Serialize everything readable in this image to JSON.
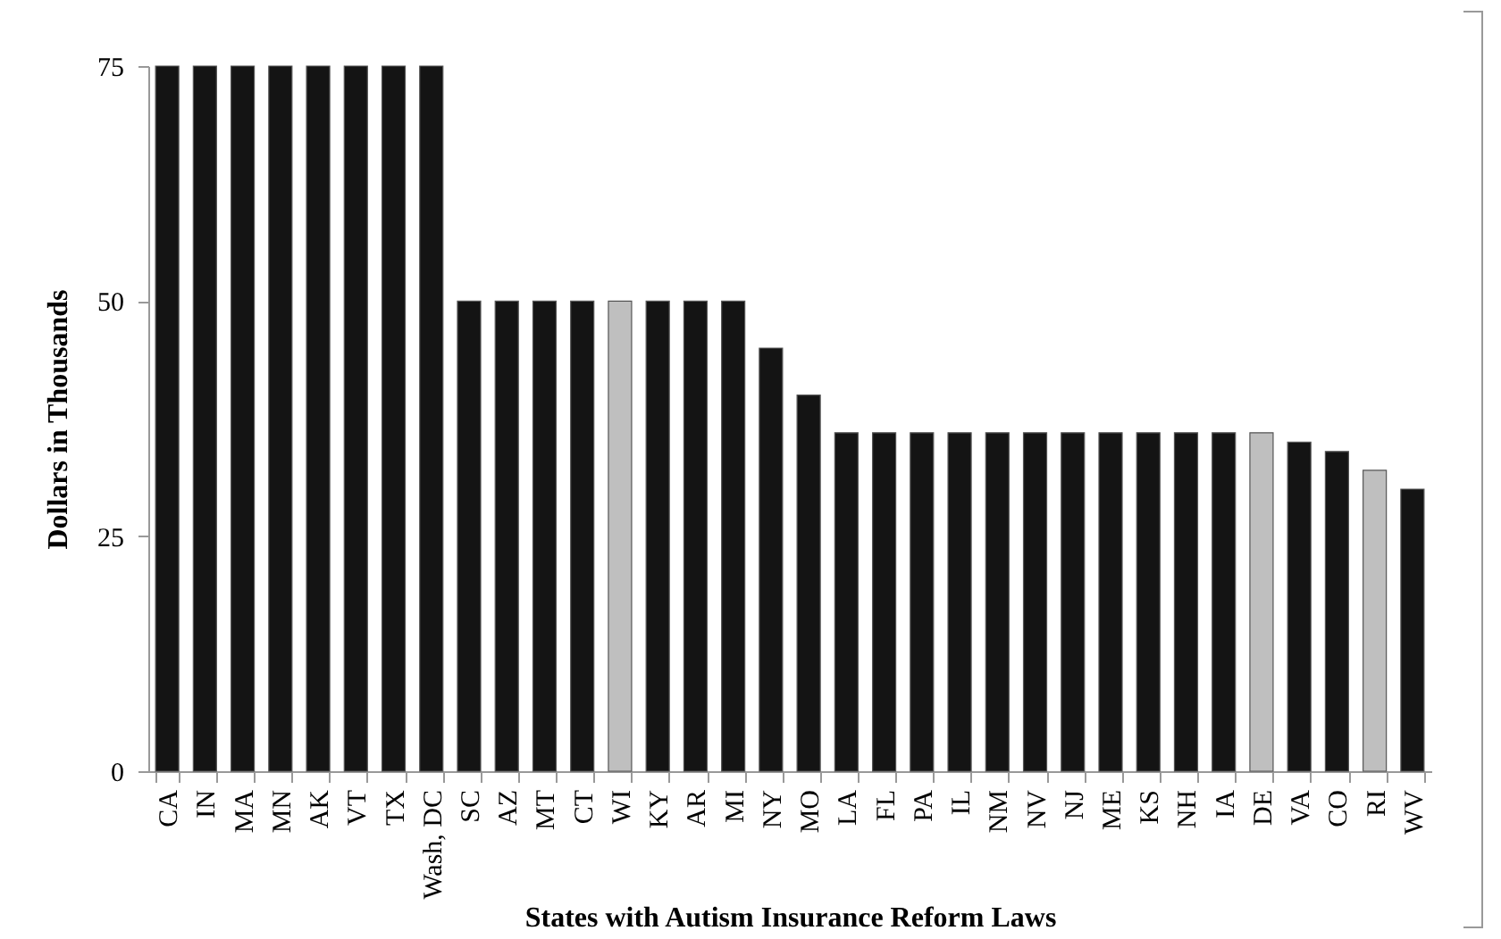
{
  "chart_data": {
    "type": "bar",
    "xlabel": "States with Autism Insurance Reform Laws",
    "ylabel": "Dollars in Thousands",
    "categories": [
      "CA",
      "IN",
      "MA",
      "MN",
      "AK",
      "VT",
      "TX",
      "Wash, DC",
      "SC",
      "AZ",
      "MT",
      "CT",
      "WI",
      "KY",
      "AR",
      "MI",
      "NY",
      "MO",
      "LA",
      "FL",
      "PA",
      "IL",
      "NM",
      "NV",
      "NJ",
      "ME",
      "KS",
      "NH",
      "IA",
      "DE",
      "VA",
      "CO",
      "RI",
      "WV"
    ],
    "values": [
      75,
      75,
      75,
      75,
      75,
      75,
      75,
      75,
      50,
      50,
      50,
      50,
      50,
      50,
      50,
      50,
      45,
      40,
      36,
      36,
      36,
      36,
      36,
      36,
      36,
      36,
      36,
      36,
      36,
      36,
      35,
      34,
      32,
      30
    ],
    "colors": [
      "#141414",
      "#141414",
      "#141414",
      "#141414",
      "#141414",
      "#141414",
      "#141414",
      "#141414",
      "#141414",
      "#141414",
      "#141414",
      "#141414",
      "#bfbfbf",
      "#141414",
      "#141414",
      "#141414",
      "#141414",
      "#141414",
      "#141414",
      "#141414",
      "#141414",
      "#141414",
      "#141414",
      "#141414",
      "#141414",
      "#141414",
      "#141414",
      "#141414",
      "#141414",
      "#bfbfbf",
      "#141414",
      "#141414",
      "#bfbfbf",
      "#141414"
    ],
    "ylim": [
      0,
      75
    ],
    "yticks": [
      0,
      25,
      50,
      75
    ],
    "grid": false
  }
}
